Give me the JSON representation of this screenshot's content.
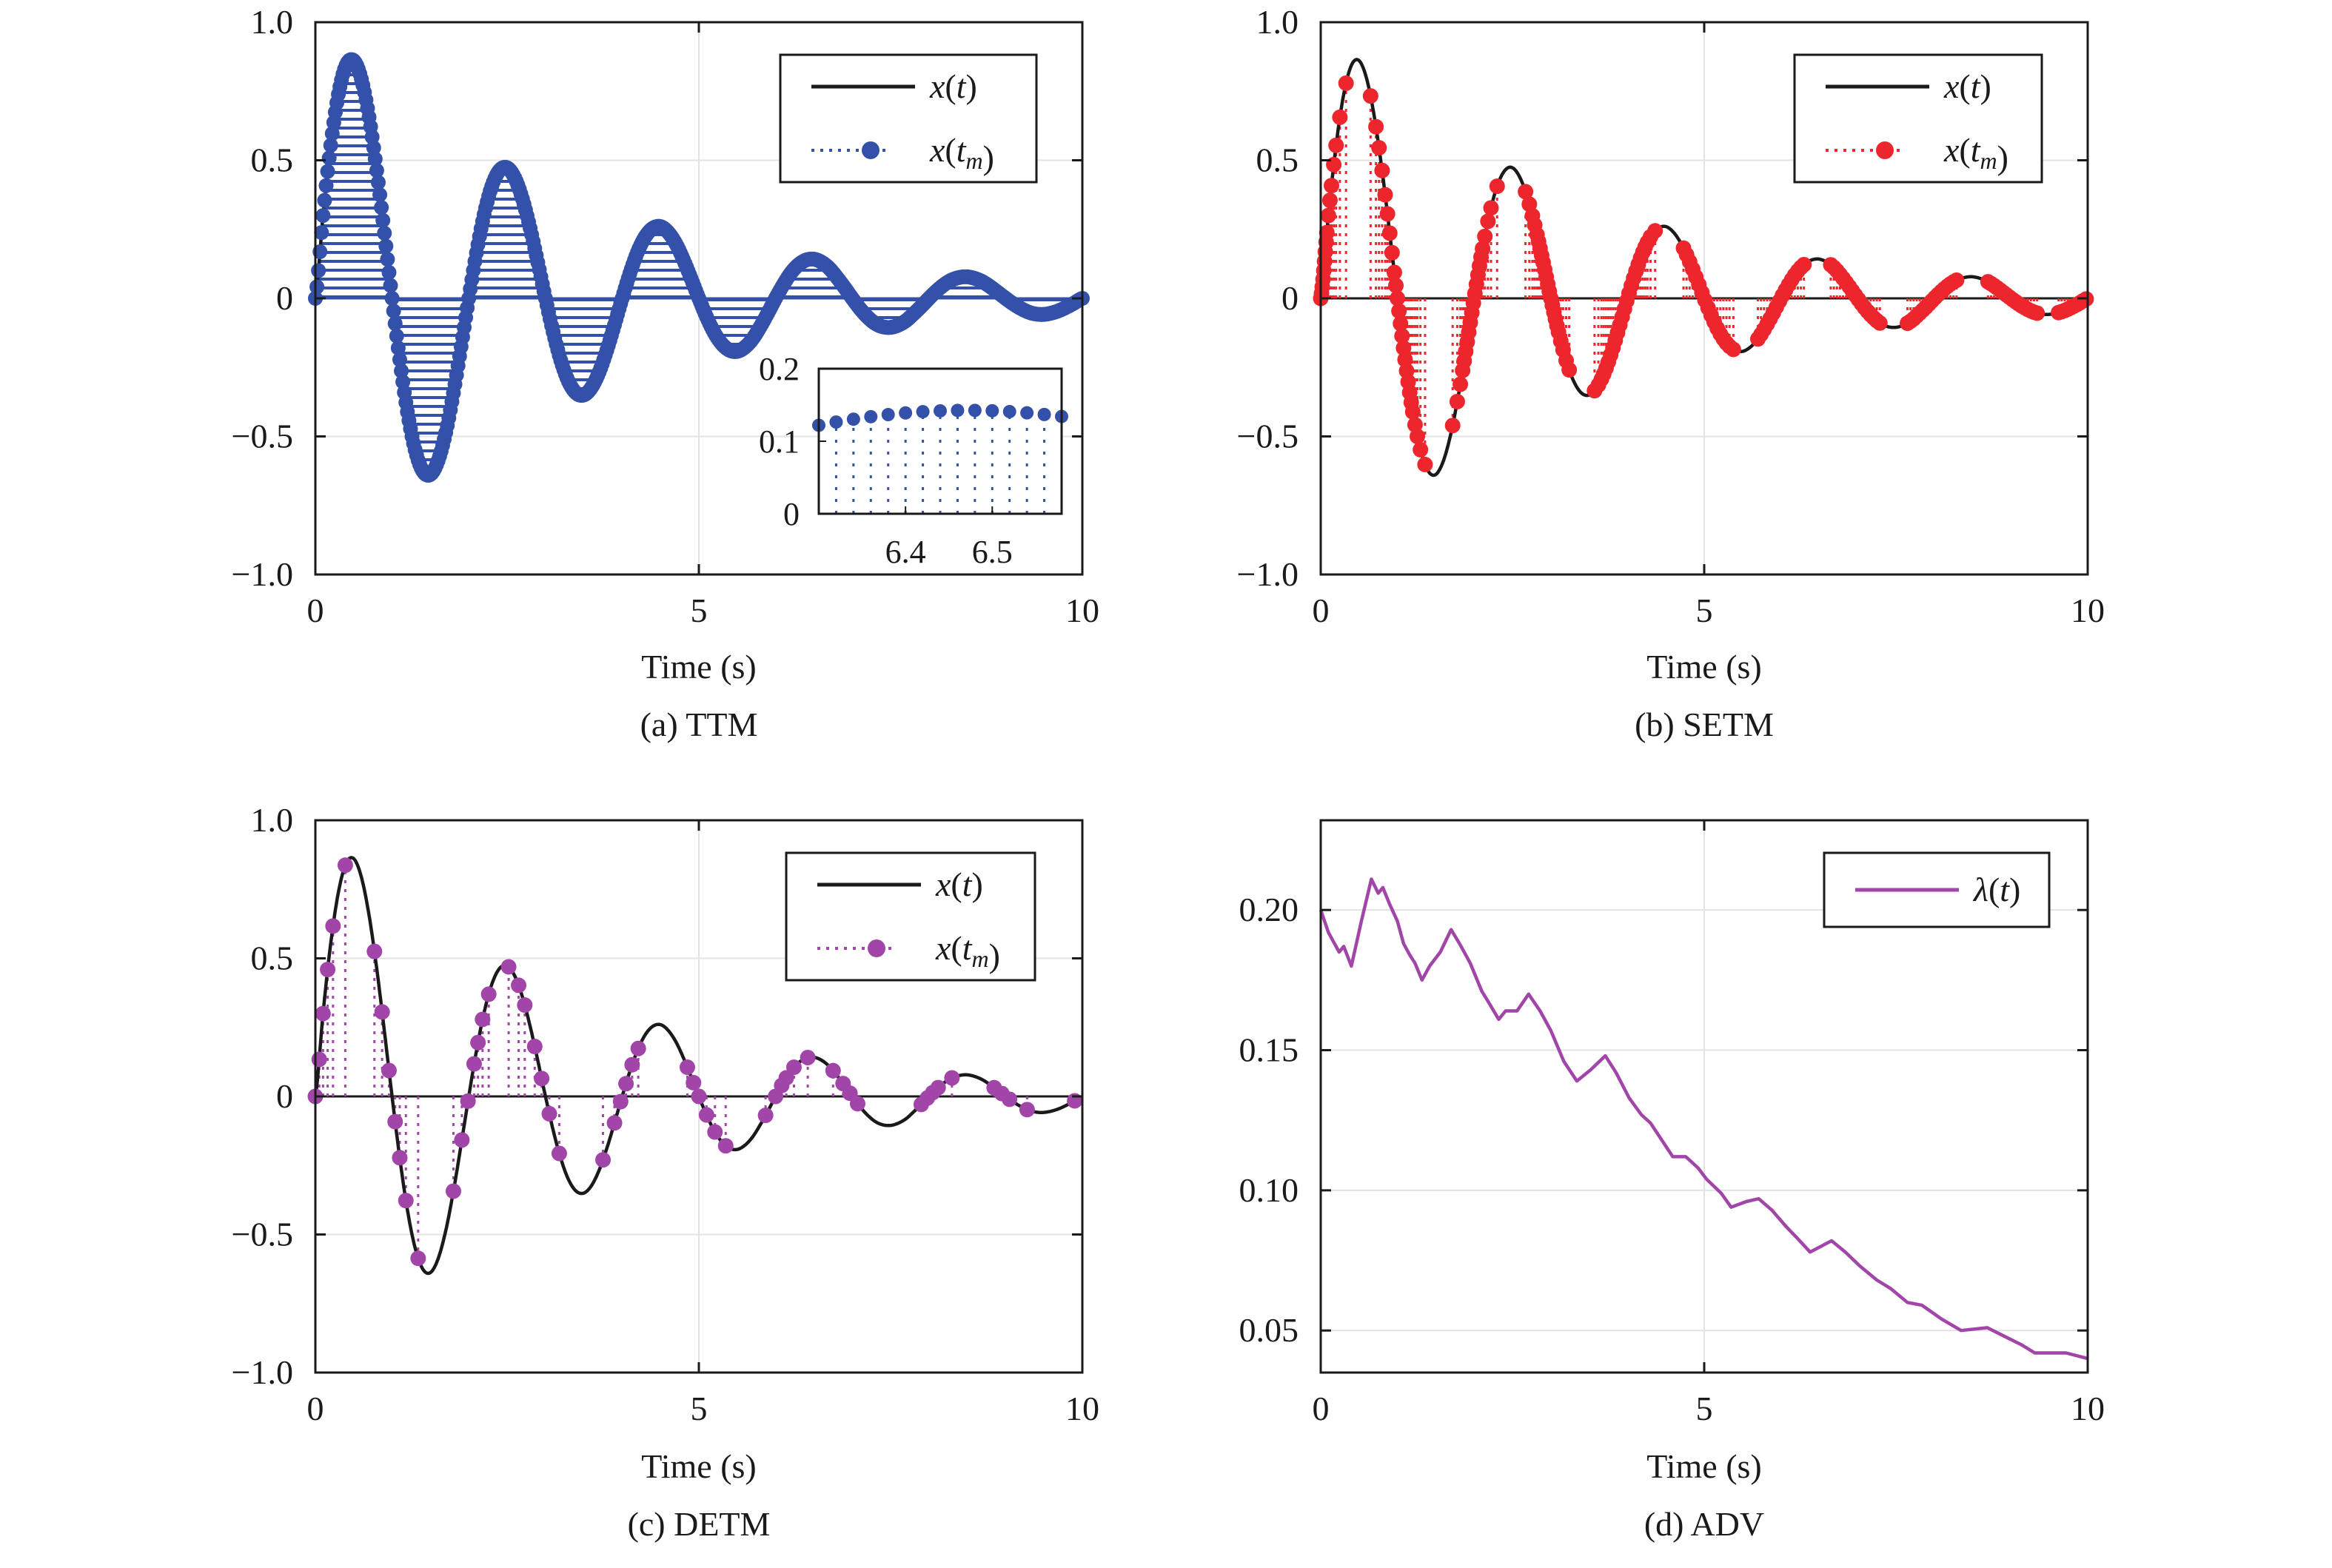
{
  "colors": {
    "signal": "#1a1a1a",
    "ttm": "#3451a9",
    "setm": "#ec262c",
    "detm": "#a245a8",
    "adv": "#a245a8",
    "grid": "#e3e3e3"
  },
  "signal": {
    "name": "x(t)",
    "t": [
      0,
      0.1,
      0.2,
      0.3,
      0.4,
      0.5,
      0.6,
      0.7,
      0.8,
      0.9,
      1,
      1.1,
      1.2,
      1.3,
      1.4,
      1.5,
      1.6,
      1.7,
      1.8,
      1.9,
      2,
      2.1,
      2.2,
      2.3,
      2.4,
      2.5,
      2.6,
      2.7,
      2.8,
      2.9,
      3,
      3.1,
      3.2,
      3.3,
      3.4,
      3.5,
      3.6,
      3.7,
      3.8,
      3.9,
      4,
      4.1,
      4.2,
      4.3,
      4.4,
      4.5,
      4.6,
      4.7,
      4.8,
      4.9,
      5,
      5.1,
      5.2,
      5.3,
      5.4,
      5.5,
      5.6,
      5.7,
      5.8,
      5.9,
      6,
      6.1,
      6.2,
      6.3,
      6.4,
      6.5,
      6.6,
      6.7,
      6.8,
      6.9,
      7,
      7.1,
      7.2,
      7.3,
      7.4,
      7.5,
      7.6,
      7.7,
      7.8,
      7.9,
      8,
      8.1,
      8.2,
      8.3,
      8.4,
      8.5,
      8.6,
      8.7,
      8.8,
      8.9,
      9,
      9.1,
      9.2,
      9.3,
      9.4,
      9.5,
      9.6,
      9.7,
      9.8,
      9.9,
      10
    ],
    "x": [
      0,
      0.3,
      0.554,
      0.739,
      0.844,
      0.861,
      0.794,
      0.656,
      0.463,
      0.236,
      0,
      -0.222,
      -0.411,
      -0.548,
      -0.625,
      -0.638,
      -0.588,
      -0.486,
      -0.343,
      -0.175,
      0,
      0.165,
      0.304,
      0.406,
      0.463,
      0.473,
      0.436,
      0.36,
      0.254,
      0.13,
      0,
      -0.122,
      -0.225,
      -0.301,
      -0.343,
      -0.35,
      -0.323,
      -0.267,
      -0.188,
      -0.096,
      0,
      0.09,
      0.167,
      0.223,
      0.254,
      0.26,
      0.239,
      0.198,
      0.139,
      0.071,
      0,
      -0.067,
      -0.124,
      -0.165,
      -0.188,
      -0.192,
      -0.177,
      -0.147,
      -0.103,
      -0.053,
      0,
      0.049,
      0.092,
      0.122,
      0.139,
      0.142,
      0.131,
      0.109,
      0.076,
      0.039,
      0,
      -0.037,
      -0.068,
      -0.091,
      -0.103,
      -0.105,
      -0.097,
      -0.081,
      -0.056,
      -0.029,
      0,
      0.027,
      0.05,
      0.067,
      0.076,
      0.078,
      0.072,
      0.06,
      0.042,
      0.021,
      0,
      -0.02,
      -0.037,
      -0.05,
      -0.057,
      -0.058,
      -0.053,
      -0.044,
      -0.031,
      -0.016,
      0
    ]
  },
  "chart_data": [
    {
      "id": "a",
      "type": "scatter",
      "caption": "(a) TTM",
      "xlabel": "Time (s)",
      "ylabel": "",
      "xlim": [
        0,
        10
      ],
      "ylim": [
        -1,
        1
      ],
      "grid": true,
      "legend": "top-right",
      "xticks": [
        0,
        5,
        10
      ],
      "xtick_labels": [
        "0",
        "5",
        "10"
      ],
      "yticks": [
        -1,
        -0.5,
        0,
        0.5,
        1
      ],
      "ytick_labels": [
        "−1.0",
        "−0.5",
        "0",
        "0.5",
        "1.0"
      ],
      "legend_entries": [
        "x(t)",
        "x(t_m)"
      ],
      "events": {
        "name": "x(t_m)",
        "color_key": "ttm",
        "sampling_period": 0.02
      },
      "inset": {
        "xlim": [
          6.3,
          6.58
        ],
        "ylim": [
          0,
          0.2
        ],
        "xticks": [
          6.4,
          6.5
        ],
        "xtick_labels": [
          "6.4",
          "6.5"
        ],
        "yticks": [
          0,
          0.1,
          0.2
        ],
        "ytick_labels": [
          "0",
          "0.1",
          "0.2"
        ]
      }
    },
    {
      "id": "b",
      "type": "scatter",
      "caption": "(b) SETM",
      "xlabel": "Time (s)",
      "ylabel": "",
      "xlim": [
        0,
        10
      ],
      "ylim": [
        -1,
        1
      ],
      "grid": true,
      "legend": "top-right",
      "xticks": [
        0,
        5,
        10
      ],
      "xtick_labels": [
        "0",
        "5",
        "10"
      ],
      "yticks": [
        -1,
        -0.5,
        0,
        0.5,
        1
      ],
      "ytick_labels": [
        "−1.0",
        "−0.5",
        "0",
        "0.5",
        "1.0"
      ],
      "legend_entries": [
        "x(t)",
        "x(t_m)"
      ],
      "events": {
        "name": "x(t_m)",
        "color_key": "setm",
        "t_m": [
          0,
          0.01,
          0.02,
          0.03,
          0.04,
          0.05,
          0.06,
          0.07,
          0.08,
          0.1,
          0.12,
          0.14,
          0.17,
          0.2,
          0.25,
          0.33,
          0.65,
          0.72,
          0.76,
          0.8,
          0.84,
          0.87,
          0.9,
          0.93,
          0.96,
          0.98,
          1.0,
          1.02,
          1.04,
          1.06,
          1.08,
          1.1,
          1.12,
          1.14,
          1.16,
          1.18,
          1.2,
          1.23,
          1.26,
          1.3,
          1.36,
          1.72,
          1.78,
          1.82,
          1.85,
          1.87,
          1.89,
          1.91,
          1.93,
          1.95,
          1.97,
          1.99,
          2.01,
          2.03,
          2.05,
          2.07,
          2.09,
          2.11,
          2.14,
          2.18,
          2.22,
          2.3,
          2.67,
          2.72,
          2.76,
          2.79,
          2.82,
          2.84,
          2.86,
          2.88,
          2.9,
          2.92,
          2.94,
          2.96,
          2.98,
          3.0,
          3.02,
          3.04,
          3.06,
          3.08,
          3.1,
          3.13,
          3.16,
          3.2,
          3.24,
          3.57,
          3.62,
          3.66,
          3.69,
          3.72,
          3.75,
          3.78,
          3.81,
          3.84,
          3.87,
          3.9,
          3.93,
          3.96,
          3.99,
          4.02,
          4.05,
          4.08,
          4.11,
          4.14,
          4.17,
          4.2,
          4.23,
          4.26,
          4.3,
          4.36,
          4.73,
          4.77,
          4.81,
          4.85,
          4.89,
          4.93,
          4.97,
          5.01,
          5.05,
          5.09,
          5.13,
          5.17,
          5.21,
          5.25,
          5.29,
          5.33,
          5.38,
          5.7,
          5.74,
          5.78,
          5.82,
          5.86,
          5.9,
          5.94,
          5.98,
          6.02,
          6.06,
          6.1,
          6.14,
          6.18,
          6.22,
          6.26,
          6.3,
          6.65,
          6.69,
          6.73,
          6.77,
          6.81,
          6.85,
          6.89,
          6.93,
          6.97,
          7.01,
          7.05,
          7.09,
          7.13,
          7.17,
          7.21,
          7.25,
          7.29,
          7.65,
          7.69,
          7.73,
          7.77,
          7.81,
          7.85,
          7.89,
          7.93,
          7.97,
          8.01,
          8.05,
          8.09,
          8.13,
          8.17,
          8.21,
          8.25,
          8.29,
          8.7,
          8.74,
          8.78,
          8.82,
          8.86,
          8.9,
          8.94,
          8.98,
          9.02,
          9.06,
          9.1,
          9.14,
          9.18,
          9.22,
          9.26,
          9.3,
          9.34,
          9.62,
          9.66,
          9.7,
          9.74,
          9.78,
          9.82,
          9.86,
          9.9,
          9.94,
          9.98
        ]
      }
    },
    {
      "id": "c",
      "type": "scatter",
      "caption": "(c) DETM",
      "xlabel": "Time (s)",
      "ylabel": "",
      "xlim": [
        0,
        10
      ],
      "ylim": [
        -1,
        1
      ],
      "grid": true,
      "legend": "top-right",
      "xticks": [
        0,
        5,
        10
      ],
      "xtick_labels": [
        "0",
        "5",
        "10"
      ],
      "yticks": [
        -1,
        -0.5,
        0,
        0.5,
        1
      ],
      "ytick_labels": [
        "−1.0",
        "−0.5",
        "0",
        "0.5",
        "1.0"
      ],
      "legend_entries": [
        "x(t)",
        "x(t_m)"
      ],
      "events": {
        "name": "x(t_m)",
        "color_key": "detm",
        "t_m": [
          0,
          0.05,
          0.1,
          0.16,
          0.23,
          0.39,
          0.77,
          0.87,
          0.96,
          1.04,
          1.1,
          1.18,
          1.34,
          1.8,
          1.91,
          1.99,
          2.07,
          2.12,
          2.18,
          2.26,
          2.52,
          2.65,
          2.73,
          2.86,
          2.95,
          3.05,
          3.18,
          3.75,
          3.9,
          3.98,
          4.05,
          4.13,
          4.21,
          4.85,
          4.93,
          5.0,
          5.1,
          5.21,
          5.35,
          5.87,
          6.0,
          6.08,
          6.14,
          6.24,
          6.42,
          6.75,
          6.88,
          6.97,
          7.07,
          7.9,
          7.98,
          8.05,
          8.12,
          8.3,
          8.85,
          8.95,
          9.05,
          9.28,
          9.9
        ]
      }
    },
    {
      "id": "d",
      "type": "line",
      "caption": "(d) ADV",
      "xlabel": "Time (s)",
      "ylabel": "",
      "xlim": [
        0,
        10
      ],
      "ylim": [
        0.035,
        0.232
      ],
      "grid": true,
      "legend": "top-right",
      "xticks": [
        0,
        5,
        10
      ],
      "xtick_labels": [
        "0",
        "5",
        "10"
      ],
      "yticks": [
        0.05,
        0.1,
        0.15,
        0.2
      ],
      "ytick_labels": [
        "0.05",
        "0.10",
        "0.15",
        "0.20"
      ],
      "legend_entries": [
        "λ(t)"
      ],
      "series": [
        {
          "name": "λ(t)",
          "color_key": "adv",
          "t": [
            0,
            0.1,
            0.18,
            0.24,
            0.3,
            0.4,
            0.53,
            0.66,
            0.75,
            0.81,
            0.9,
            1.0,
            1.08,
            1.16,
            1.23,
            1.32,
            1.42,
            1.56,
            1.7,
            1.81,
            1.95,
            2.1,
            2.19,
            2.32,
            2.41,
            2.56,
            2.71,
            2.86,
            3.0,
            3.17,
            3.34,
            3.52,
            3.71,
            3.85,
            4.02,
            4.18,
            4.3,
            4.59,
            4.76,
            4.92,
            5.03,
            5.22,
            5.35,
            5.55,
            5.71,
            5.88,
            6.07,
            6.21,
            6.38,
            6.66,
            6.84,
            7.03,
            7.25,
            7.43,
            7.65,
            7.84,
            8.1,
            8.35,
            8.69,
            8.91,
            9.13,
            9.31,
            9.72,
            10
          ],
          "values": [
            0.2,
            0.192,
            0.188,
            0.185,
            0.187,
            0.18,
            0.196,
            0.211,
            0.206,
            0.208,
            0.202,
            0.196,
            0.188,
            0.184,
            0.181,
            0.175,
            0.18,
            0.185,
            0.193,
            0.188,
            0.181,
            0.171,
            0.167,
            0.161,
            0.164,
            0.164,
            0.17,
            0.164,
            0.157,
            0.146,
            0.139,
            0.143,
            0.148,
            0.142,
            0.133,
            0.127,
            0.124,
            0.112,
            0.112,
            0.108,
            0.104,
            0.099,
            0.094,
            0.096,
            0.097,
            0.093,
            0.087,
            0.083,
            0.078,
            0.082,
            0.078,
            0.073,
            0.068,
            0.065,
            0.06,
            0.059,
            0.054,
            0.05,
            0.051,
            0.048,
            0.045,
            0.042,
            0.042,
            0.04
          ]
        }
      ]
    }
  ]
}
